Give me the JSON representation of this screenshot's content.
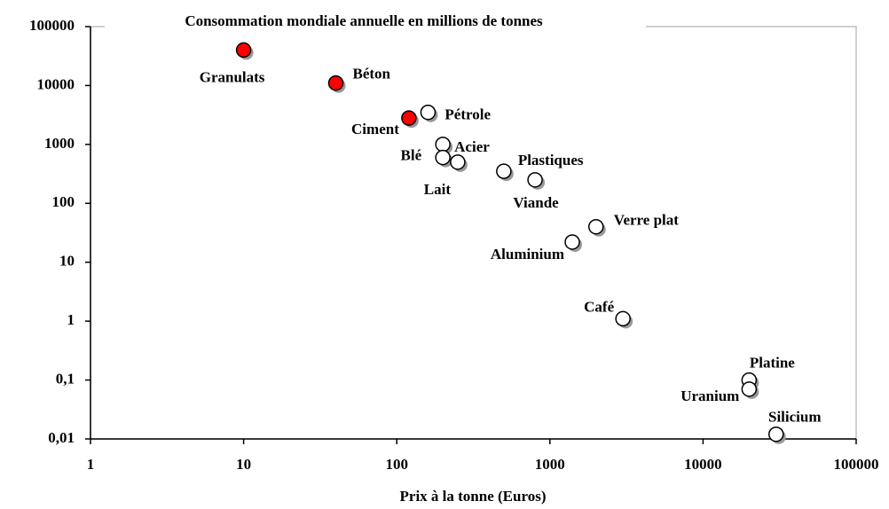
{
  "chart_data": {
    "type": "scatter",
    "title": "Consommation mondiale annuelle en millions de tonnes",
    "xlabel": "Prix à la tonne (Euros)",
    "xscale": "log",
    "yscale": "log",
    "xlim": [
      1,
      100000
    ],
    "ylim": [
      0.01,
      100000
    ],
    "xticks": [
      1,
      10,
      100,
      1000,
      10000,
      100000
    ],
    "yticks": [
      {
        "value": 0.01,
        "label": "0,01"
      },
      {
        "value": 0.1,
        "label": "0,1"
      },
      1,
      10,
      100,
      1000,
      10000,
      100000
    ],
    "series": [
      {
        "labels": [
          "Granulats",
          "Béton",
          "Ciment",
          "Pétrole",
          "Acier",
          "Blé",
          "Lait",
          "Plastiques",
          "Viande",
          "Verre plat",
          "Aluminium",
          "Café",
          "Platine",
          "Uranium",
          "Silicium"
        ],
        "x": [
          10,
          40,
          120,
          160,
          200,
          200,
          250,
          500,
          800,
          2000,
          1400,
          3000,
          20000,
          20000,
          30000
        ],
        "values": [
          40000,
          11000,
          2800,
          3500,
          1000,
          600,
          500,
          350,
          250,
          40,
          22,
          1.1,
          0.1,
          0.07,
          0.012
        ],
        "colors": [
          "#ff0000",
          "#ff0000",
          "#ff0000",
          "#ffffff",
          "#ffffff",
          "#ffffff",
          "#ffffff",
          "#ffffff",
          "#ffffff",
          "#ffffff",
          "#ffffff",
          "#ffffff",
          "#ffffff",
          "#ffffff",
          "#ffffff"
        ]
      }
    ]
  }
}
